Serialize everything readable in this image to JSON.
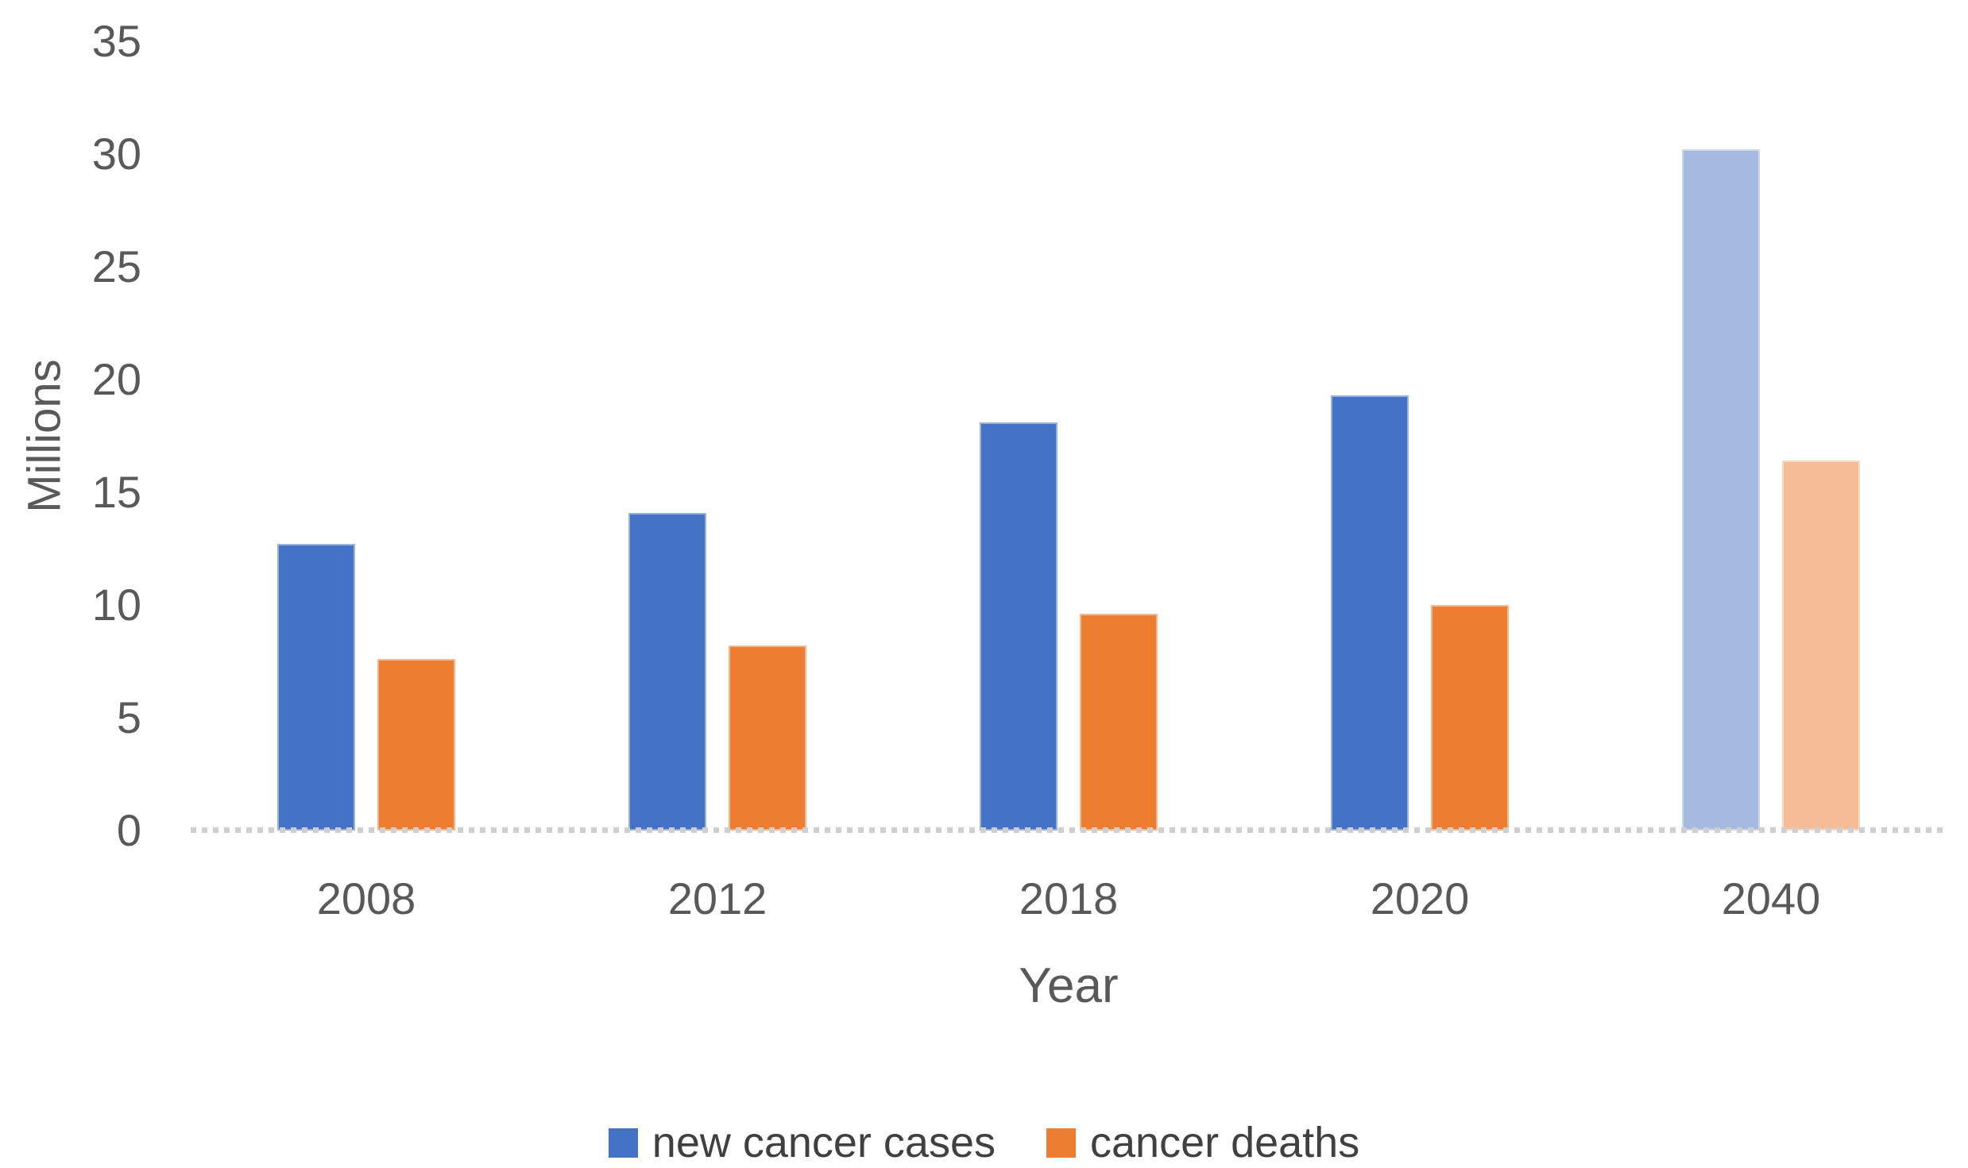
{
  "chart_data": {
    "type": "bar",
    "title": "",
    "categories": [
      "2008",
      "2012",
      "2018",
      "2020",
      "2040"
    ],
    "series": [
      {
        "name": "new cancer cases",
        "values": [
          12.7,
          14.1,
          18.1,
          19.3,
          30.2
        ],
        "color": "#4472C4",
        "projected_color": "#A6B9DE"
      },
      {
        "name": "cancer deaths",
        "values": [
          7.6,
          8.2,
          9.6,
          10.0,
          16.4
        ],
        "color": "#ED7D31",
        "projected_color": "#F5BD95"
      }
    ],
    "projected_categories": [
      "2040"
    ],
    "xlabel": "Year",
    "ylabel": "Millions",
    "ylim": [
      0,
      35
    ],
    "yticks": [
      0,
      5,
      10,
      15,
      20,
      25,
      30,
      35
    ],
    "grid": false,
    "legend_position": "bottom",
    "axis_text_color": "#595959",
    "baseline_color": "#cfcfcf"
  }
}
